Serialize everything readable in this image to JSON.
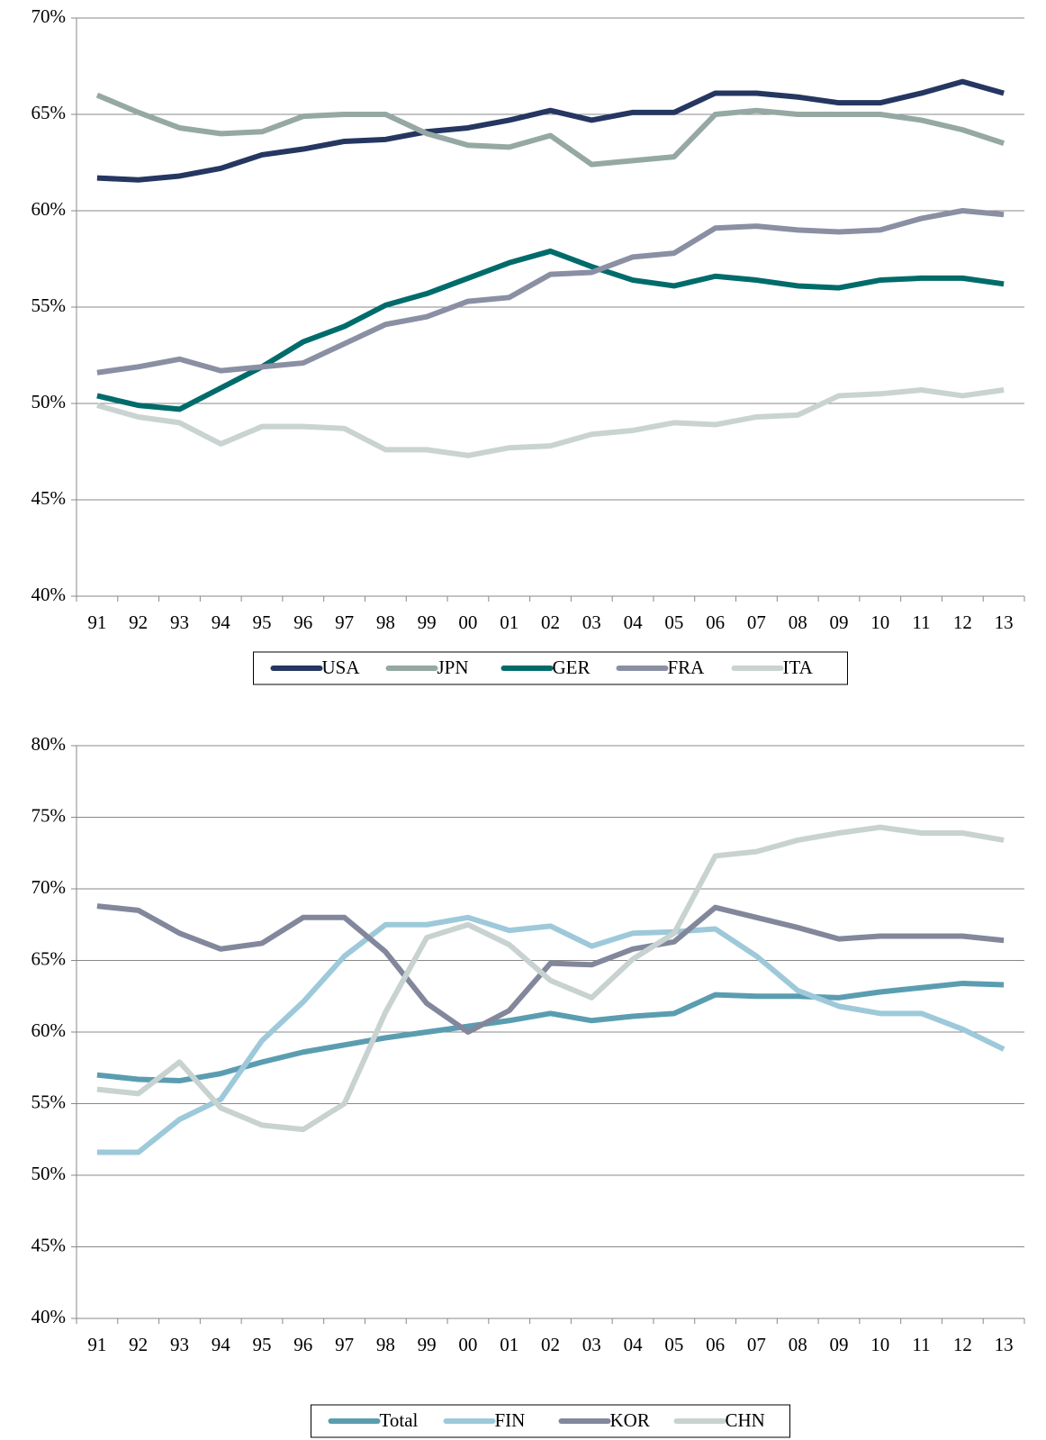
{
  "chart_data": [
    {
      "type": "line",
      "categories": [
        "91",
        "92",
        "93",
        "94",
        "95",
        "96",
        "97",
        "98",
        "99",
        "00",
        "01",
        "02",
        "03",
        "04",
        "05",
        "06",
        "07",
        "08",
        "09",
        "10",
        "11",
        "12",
        "13"
      ],
      "ylim": [
        40,
        70
      ],
      "yticks": [
        {
          "value": 40,
          "label": "40%"
        },
        {
          "value": 45,
          "label": "45%"
        },
        {
          "value": 50,
          "label": "50%"
        },
        {
          "value": 55,
          "label": "55%"
        },
        {
          "value": 60,
          "label": "60%"
        },
        {
          "value": 65,
          "label": "65%"
        },
        {
          "value": 70,
          "label": "70%"
        }
      ],
      "grid": true,
      "legend": "bottom",
      "series": [
        {
          "name": "USA",
          "color": "#253661",
          "values": [
            61.7,
            61.6,
            61.8,
            62.2,
            62.9,
            63.2,
            63.6,
            63.7,
            64.1,
            64.3,
            64.7,
            65.2,
            64.7,
            65.1,
            65.1,
            66.1,
            66.1,
            65.9,
            65.6,
            65.6,
            66.1,
            66.7,
            66.1
          ]
        },
        {
          "name": "JPN",
          "color": "#95a8a4",
          "values": [
            66.0,
            65.1,
            64.3,
            64.0,
            64.1,
            64.9,
            65.0,
            65.0,
            64.0,
            63.4,
            63.3,
            63.9,
            62.4,
            62.6,
            62.8,
            65.0,
            65.2,
            65.0,
            65.0,
            65.0,
            64.7,
            64.2,
            63.5
          ]
        },
        {
          "name": "GER",
          "color": "#006b6b",
          "values": [
            50.4,
            49.9,
            49.7,
            50.8,
            51.9,
            53.2,
            54.0,
            55.1,
            55.7,
            56.5,
            57.3,
            57.9,
            57.1,
            56.4,
            56.1,
            56.6,
            56.4,
            56.1,
            56.0,
            56.4,
            56.5,
            56.5,
            56.2
          ]
        },
        {
          "name": "FRA",
          "color": "#8a8fa3",
          "values": [
            51.6,
            51.9,
            52.3,
            51.7,
            51.9,
            52.1,
            53.1,
            54.1,
            54.5,
            55.3,
            55.5,
            56.7,
            56.8,
            57.6,
            57.8,
            59.1,
            59.2,
            59.0,
            58.9,
            59.0,
            59.6,
            60.0,
            59.8
          ]
        },
        {
          "name": "ITA",
          "color": "#c9d3d2",
          "values": [
            49.9,
            49.3,
            49.0,
            47.9,
            48.8,
            48.8,
            48.7,
            47.6,
            47.6,
            47.3,
            47.7,
            47.8,
            48.4,
            48.6,
            49.0,
            48.9,
            49.3,
            49.4,
            50.4,
            50.5,
            50.7,
            50.4,
            50.7
          ]
        }
      ]
    },
    {
      "type": "line",
      "categories": [
        "91",
        "92",
        "93",
        "94",
        "95",
        "96",
        "97",
        "98",
        "99",
        "00",
        "01",
        "02",
        "03",
        "04",
        "05",
        "06",
        "07",
        "08",
        "09",
        "10",
        "11",
        "12",
        "13"
      ],
      "ylim": [
        40,
        80
      ],
      "yticks": [
        {
          "value": 40,
          "label": "40%"
        },
        {
          "value": 45,
          "label": "45%"
        },
        {
          "value": 50,
          "label": "50%"
        },
        {
          "value": 55,
          "label": "55%"
        },
        {
          "value": 60,
          "label": "60%"
        },
        {
          "value": 65,
          "label": "65%"
        },
        {
          "value": 70,
          "label": "70%"
        },
        {
          "value": 75,
          "label": "75%"
        },
        {
          "value": 80,
          "label": "80%"
        }
      ],
      "grid": true,
      "legend": "bottom",
      "series": [
        {
          "name": "Total",
          "color": "#5b9db0",
          "values": [
            57.0,
            56.7,
            56.6,
            57.1,
            57.9,
            58.6,
            59.1,
            59.6,
            60.0,
            60.4,
            60.8,
            61.3,
            60.8,
            61.1,
            61.3,
            62.6,
            62.5,
            62.5,
            62.4,
            62.8,
            63.1,
            63.4,
            63.3
          ]
        },
        {
          "name": "FIN",
          "color": "#9dc9da",
          "values": [
            51.6,
            51.6,
            53.9,
            55.3,
            59.4,
            62.1,
            65.3,
            67.5,
            67.5,
            68.0,
            67.1,
            67.4,
            66.0,
            66.9,
            67.0,
            67.2,
            65.3,
            62.9,
            61.8,
            61.3,
            61.3,
            60.2,
            58.8
          ]
        },
        {
          "name": "KOR",
          "color": "#82879b",
          "values": [
            68.8,
            68.5,
            66.9,
            65.8,
            66.2,
            68.0,
            68.0,
            65.6,
            62.0,
            60.0,
            61.5,
            64.8,
            64.7,
            65.8,
            66.3,
            68.7,
            68.0,
            67.3,
            66.5,
            66.7,
            66.7,
            66.7,
            66.4
          ]
        },
        {
          "name": "CHN",
          "color": "#c8d2d1",
          "values": [
            56.0,
            55.7,
            57.9,
            54.7,
            53.5,
            53.2,
            55.0,
            61.4,
            66.6,
            67.5,
            66.1,
            63.6,
            62.4,
            65.1,
            66.9,
            72.3,
            72.6,
            73.4,
            73.9,
            74.3,
            73.9,
            73.9,
            73.4
          ]
        }
      ]
    }
  ]
}
